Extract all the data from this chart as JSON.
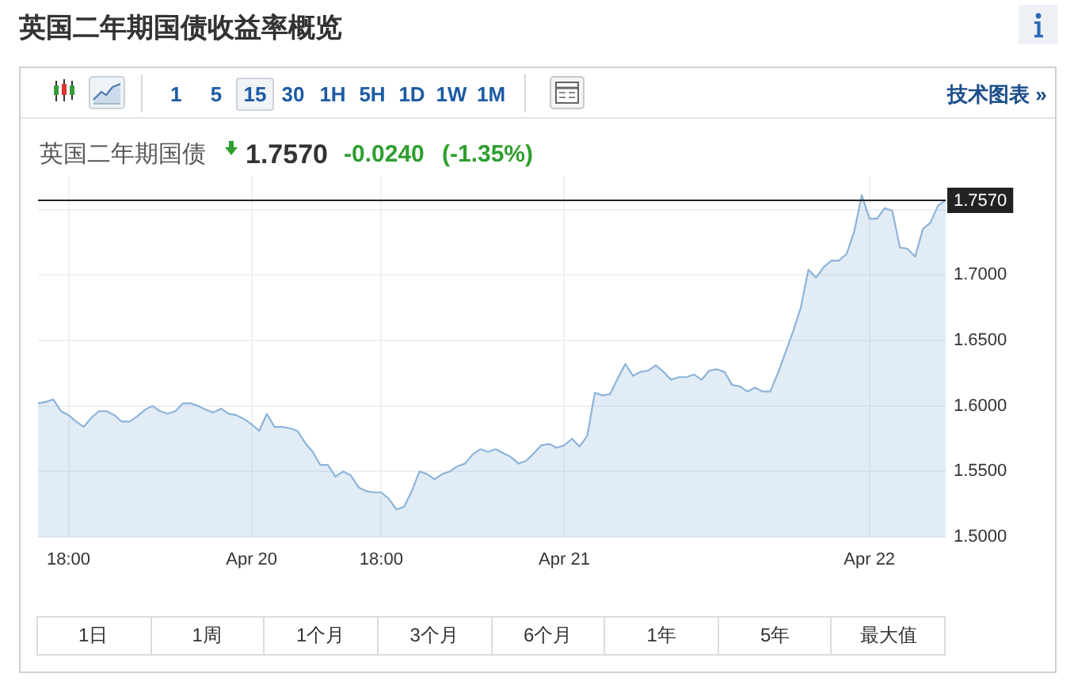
{
  "chart_data": {
    "type": "area",
    "title": "英国二年期国债收益率概览",
    "subtitle": "英国二年期国债",
    "categories": [
      null,
      null,
      null,
      null,
      "18:00",
      null,
      null,
      null,
      null,
      null,
      null,
      null,
      null,
      null,
      null,
      null,
      null,
      null,
      null,
      null,
      null,
      null,
      null,
      null,
      null,
      null,
      null,
      null,
      "Apr 20",
      null,
      null,
      null,
      null,
      null,
      null,
      null,
      null,
      null,
      null,
      null,
      null,
      null,
      null,
      null,
      null,
      "18:00",
      null,
      null,
      null,
      null,
      null,
      null,
      null,
      null,
      null,
      null,
      null,
      null,
      null,
      null,
      null,
      null,
      null,
      null,
      null,
      null,
      null,
      null,
      null,
      "Apr 21",
      null,
      null,
      null,
      null,
      null,
      null,
      null,
      null,
      null,
      null,
      null,
      null,
      null,
      null,
      null,
      null,
      null,
      null,
      null,
      null,
      null,
      null,
      null,
      null,
      null,
      null,
      null,
      null,
      null,
      null,
      null,
      null,
      null,
      null,
      null,
      null,
      null,
      null,
      null,
      "Apr 22",
      null,
      null,
      null,
      null,
      null,
      null,
      null,
      null,
      null,
      null
    ],
    "color": "#8db4da",
    "values": [
      1.602,
      1.603,
      1.605,
      1.596,
      1.593,
      1.588,
      1.584,
      1.591,
      1.596,
      1.596,
      1.593,
      1.588,
      1.588,
      1.592,
      1.597,
      1.6,
      1.596,
      1.594,
      1.596,
      1.602,
      1.602,
      1.6,
      1.597,
      1.595,
      1.598,
      1.594,
      1.593,
      1.59,
      1.586,
      1.581,
      1.594,
      1.584,
      1.584,
      1.583,
      1.581,
      1.572,
      1.565,
      1.555,
      1.555,
      1.546,
      1.55,
      1.547,
      1.538,
      1.535,
      1.534,
      1.534,
      1.529,
      1.521,
      1.523,
      1.535,
      1.55,
      1.548,
      1.544,
      1.548,
      1.55,
      1.554,
      1.556,
      1.563,
      1.567,
      1.565,
      1.567,
      1.564,
      1.561,
      1.556,
      1.558,
      1.564,
      1.57,
      1.571,
      1.568,
      1.57,
      1.575,
      1.569,
      1.577,
      1.61,
      1.608,
      1.609,
      1.621,
      1.632,
      1.623,
      1.626,
      1.627,
      1.631,
      1.626,
      1.62,
      1.622,
      1.622,
      1.624,
      1.62,
      1.627,
      1.628,
      1.626,
      1.616,
      1.615,
      1.611,
      1.614,
      1.611,
      1.611,
      1.625,
      1.641,
      1.657,
      1.675,
      1.704,
      1.698,
      1.706,
      1.711,
      1.711,
      1.716,
      1.733,
      1.761,
      1.743,
      1.743,
      1.751,
      1.749,
      1.721,
      1.72,
      1.714,
      1.735,
      1.74,
      1.753,
      1.757
    ],
    "ylim": [
      1.5,
      1.775
    ],
    "yticks": [
      {
        "value": 1.5,
        "label": "1.5000"
      },
      {
        "value": 1.55,
        "label": "1.5500"
      },
      {
        "value": 1.6,
        "label": "1.6000"
      },
      {
        "value": 1.65,
        "label": "1.6500"
      },
      {
        "value": 1.7,
        "label": "1.7000"
      },
      {
        "value": 1.75,
        "label": null
      }
    ],
    "grid": true,
    "ref_lines": [
      {
        "axis": "y",
        "value": 1.757,
        "label": "1.7570",
        "color": "#222222"
      }
    ],
    "annotations": [
      "1.7570",
      "-0.0240",
      "(-1.35%)",
      "1 5",
      "15",
      "30",
      "1H",
      "5H",
      "1D",
      "1W",
      "1M",
      "技术图表 »",
      "1日",
      "1周",
      "1个月",
      "3个月",
      "6个月",
      "1年",
      "5年",
      "最大值"
    ]
  }
}
